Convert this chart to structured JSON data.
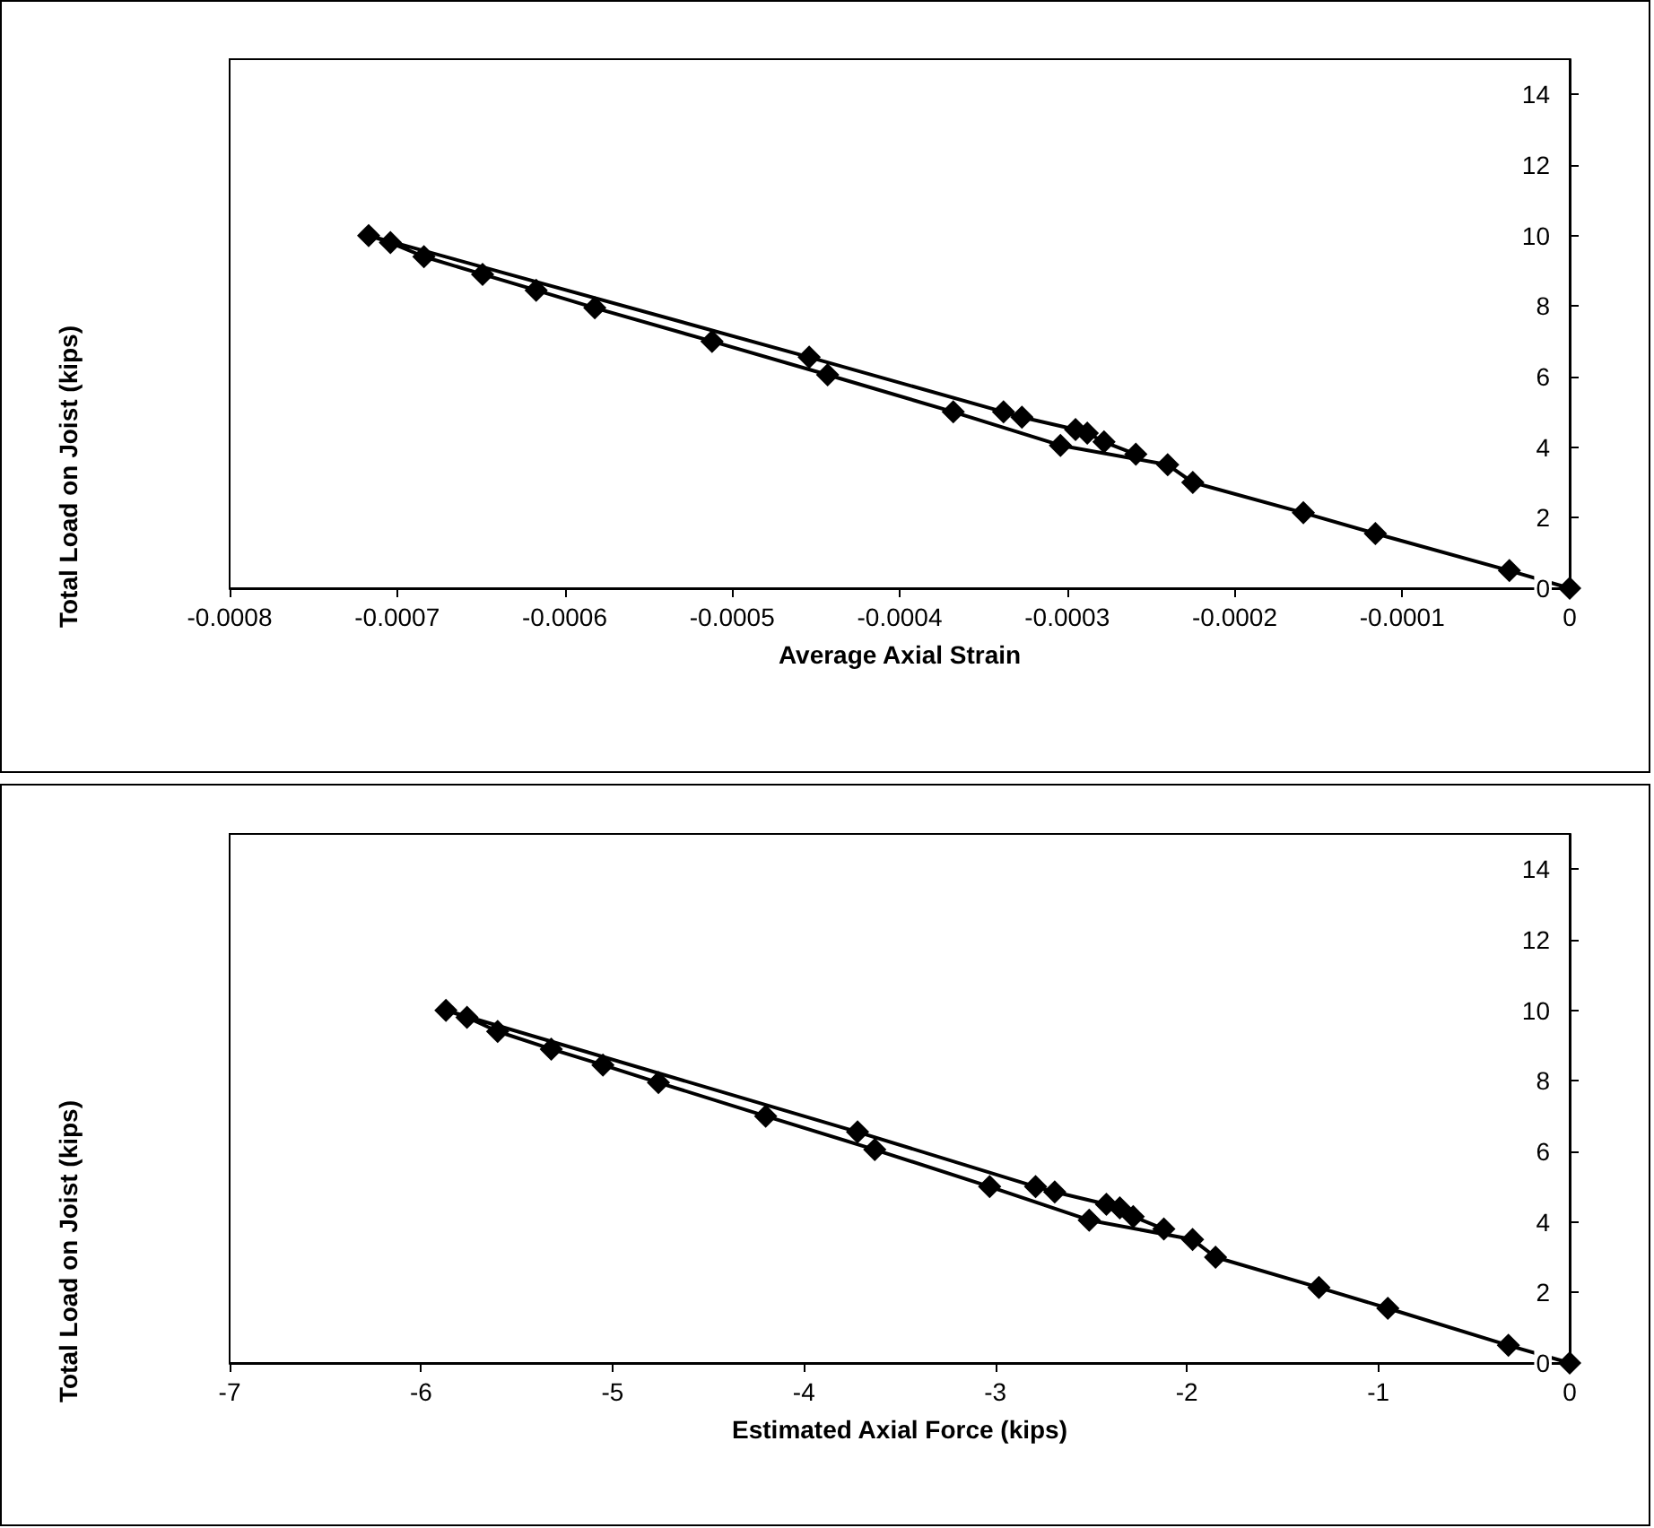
{
  "chart_data": [
    {
      "type": "line",
      "xlabel": "Average Axial Strain",
      "ylabel": "Total Load on Joist (kips)",
      "marker": "diamond",
      "line_style": "solid",
      "grid": false,
      "xlim": [
        -0.0008,
        0
      ],
      "xticks": [
        -0.0008,
        -0.0007,
        -0.0006,
        -0.0005,
        -0.0004,
        -0.0003,
        -0.0002,
        -0.0001,
        0
      ],
      "ylim": [
        0,
        15
      ],
      "yticks": [
        0,
        2,
        4,
        6,
        8,
        10,
        12,
        14
      ],
      "series": [
        {
          "color": "#000000",
          "x": [
            0,
            -3.6e-05,
            -0.000116,
            -0.000159,
            -0.000225,
            -0.00024,
            -0.000304,
            -0.000368,
            -0.000443,
            -0.000512,
            -0.000582,
            -0.000617,
            -0.000649,
            -0.000684,
            -0.000704,
            -0.000717,
            -0.000454,
            -0.000338,
            -0.000327,
            -0.000295,
            -0.000288,
            -0.000278,
            -0.000259
          ],
          "values": [
            0,
            0.5,
            1.55,
            2.14,
            3.0,
            3.5,
            4.05,
            5.0,
            6.05,
            7.0,
            7.95,
            8.45,
            8.9,
            9.4,
            9.8,
            10.0,
            6.55,
            5.0,
            4.85,
            4.5,
            4.4,
            4.15,
            3.8
          ]
        }
      ]
    },
    {
      "type": "line",
      "xlabel": "Estimated Axial Force (kips)",
      "ylabel": "Total Load on Joist (kips)",
      "marker": "diamond",
      "line_style": "solid",
      "grid": false,
      "xlim": [
        -7,
        0
      ],
      "xticks": [
        -7,
        -6,
        -5,
        -4,
        -3,
        -2,
        -1,
        0
      ],
      "ylim": [
        0,
        15
      ],
      "yticks": [
        0,
        2,
        4,
        6,
        8,
        10,
        12,
        14
      ],
      "series": [
        {
          "color": "#000000",
          "x": [
            0,
            -0.32,
            -0.95,
            -1.31,
            -1.85,
            -1.97,
            -2.51,
            -3.03,
            -3.63,
            -4.2,
            -4.76,
            -5.05,
            -5.32,
            -5.6,
            -5.76,
            -5.87,
            -3.72,
            -2.79,
            -2.69,
            -2.42,
            -2.35,
            -2.28,
            -2.12
          ],
          "values": [
            0,
            0.5,
            1.55,
            2.14,
            3.0,
            3.5,
            4.05,
            5.0,
            6.05,
            7.0,
            7.95,
            8.45,
            8.9,
            9.4,
            9.8,
            10.0,
            6.55,
            5.0,
            4.85,
            4.5,
            4.4,
            4.15,
            3.8
          ]
        }
      ]
    }
  ]
}
